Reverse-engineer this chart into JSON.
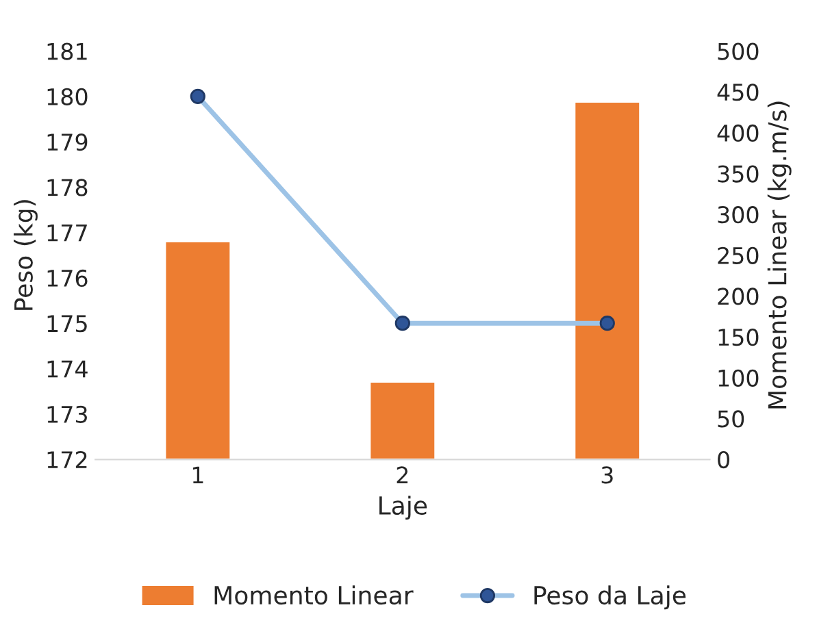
{
  "chart_data": {
    "type": "bar",
    "xlabel": "Laje",
    "ylabel": "Peso (kg)",
    "y2label": "Momento Linear (kg.m/s)",
    "categories": [
      "1",
      "2",
      "3"
    ],
    "series": [
      {
        "name": "Momento Linear",
        "axis": "y2",
        "color": "#ed7d31",
        "values": [
          267,
          95,
          438
        ]
      },
      {
        "name": "Peso da Laje",
        "type": "line",
        "axis": "y",
        "color": "#9dc3e6",
        "marker": "circle",
        "values": [
          180,
          175,
          175
        ]
      }
    ],
    "ylim": [
      172,
      181
    ],
    "yticks": [
      172,
      173,
      174,
      175,
      176,
      177,
      178,
      179,
      180,
      181
    ],
    "y2lim": [
      0,
      500
    ],
    "y2ticks": [
      0,
      50,
      100,
      150,
      200,
      250,
      300,
      350,
      400,
      450,
      500
    ],
    "grid": false,
    "legend": "bottom"
  }
}
